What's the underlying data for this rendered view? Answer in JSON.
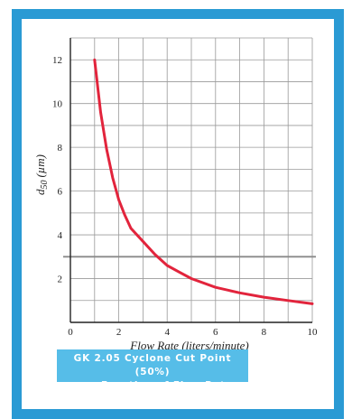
{
  "chart_data": {
    "type": "line",
    "xlabel": "Flow Rate (liters/minute)",
    "ylabel_main": "d",
    "ylabel_sub": "50",
    "ylabel_unit": "(µm)",
    "xlim": [
      0,
      10
    ],
    "ylim": [
      0,
      13
    ],
    "x_ticks": [
      0,
      2,
      4,
      6,
      8,
      10
    ],
    "y_ticks": [
      2,
      4,
      6,
      8,
      10,
      12
    ],
    "grid": true,
    "series": [
      {
        "color": "#e2243c",
        "points": [
          [
            1,
            12
          ],
          [
            1.25,
            9.6
          ],
          [
            1.5,
            7.9
          ],
          [
            1.75,
            6.6
          ],
          [
            2,
            5.6
          ],
          [
            2.25,
            4.9
          ],
          [
            2.5,
            4.3
          ],
          [
            3,
            3.7
          ],
          [
            3.5,
            3.1
          ],
          [
            4,
            2.6
          ],
          [
            4.5,
            2.3
          ],
          [
            5,
            2.0
          ],
          [
            6,
            1.6
          ],
          [
            7,
            1.35
          ],
          [
            8,
            1.15
          ],
          [
            9,
            1.0
          ],
          [
            10,
            0.85
          ]
        ]
      }
    ],
    "highlight_line_y": 3.0,
    "highlight_line_color": "#8a8a8a"
  },
  "caption": {
    "line1": "GK 2.05 Cyclone Cut Point (50%)",
    "line2": "as a Function of Flow Rate"
  },
  "colors": {
    "frame": "#2a9ad4",
    "caption_bg": "#56bde8",
    "grid": "#9a9a9a"
  }
}
